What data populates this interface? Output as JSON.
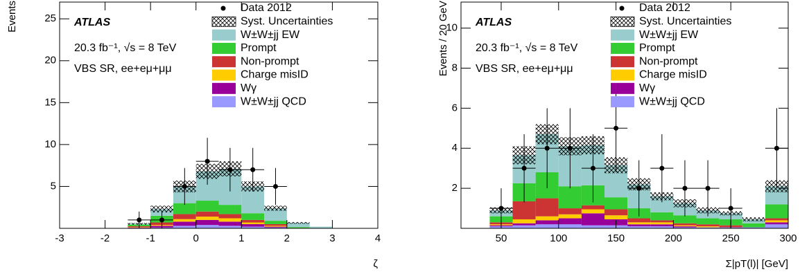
{
  "chart_data": [
    {
      "type": "histogram",
      "ylabel": "Events",
      "xlabel": "ζ",
      "annotations": [
        "ATLAS",
        "20.3 fb⁻¹, √s = 8 TeV",
        "VBS SR, ee+eμ+μμ"
      ],
      "bins": [
        -3,
        -2.5,
        -2,
        -1.5,
        -1,
        -0.5,
        0,
        0.5,
        1,
        1.5,
        2,
        2.5,
        3,
        3.5,
        4
      ],
      "series": [
        {
          "name": "W±W±jj EW",
          "color": "#99cccc",
          "values": [
            0,
            0,
            0,
            0.1,
            0.8,
            2.0,
            3.5,
            4.3,
            3.2,
            1.5,
            0.5,
            0.2,
            0,
            0
          ]
        },
        {
          "name": "Prompt",
          "color": "#33cc33",
          "values": [
            0,
            0,
            0,
            0.2,
            0.8,
            1.3,
            1.3,
            1.1,
            0.8,
            0.4,
            0.1,
            0,
            0,
            0
          ]
        },
        {
          "name": "Non-prompt",
          "color": "#cc3333",
          "values": [
            0,
            0,
            0,
            0.1,
            0.3,
            0.6,
            0.6,
            0.5,
            0.3,
            0.2,
            0,
            0,
            0,
            0
          ]
        },
        {
          "name": "Charge misID",
          "color": "#ffcc00",
          "values": [
            0,
            0,
            0,
            0.05,
            0.1,
            0.3,
            0.4,
            0.4,
            0.2,
            0.1,
            0,
            0,
            0,
            0
          ]
        },
        {
          "name": "Wγ",
          "color": "#990099",
          "values": [
            0,
            0,
            0,
            0.05,
            0.2,
            0.5,
            0.6,
            0.5,
            0.3,
            0.1,
            0,
            0,
            0,
            0
          ]
        },
        {
          "name": "W±W±jj QCD",
          "color": "#9999ff",
          "values": [
            0,
            0,
            0,
            0.05,
            0.1,
            0.3,
            0.4,
            0.3,
            0.2,
            0.1,
            0.05,
            0,
            0,
            0
          ]
        }
      ],
      "syst": {
        "name": "Syst. Uncertainties",
        "values": [
          0,
          0,
          0,
          0.1,
          0.4,
          0.7,
          0.9,
          0.9,
          0.6,
          0.3,
          0.1,
          0,
          0,
          0
        ]
      },
      "data": {
        "name": "Data 2012",
        "x": [
          -1.25,
          -0.75,
          -0.25,
          0.25,
          0.75,
          1.25,
          1.75
        ],
        "values": [
          1,
          1,
          5,
          8,
          7,
          7,
          5
        ],
        "errors": [
          1,
          1,
          2.2,
          2.8,
          2.6,
          2.6,
          2.2
        ]
      },
      "xlim": [
        -3,
        4
      ],
      "ylim": [
        0,
        27
      ],
      "xticks": [
        -3,
        -2,
        -1,
        0,
        1,
        2,
        3,
        4
      ],
      "yticks": [
        5,
        10,
        15,
        20,
        25
      ]
    },
    {
      "type": "histogram",
      "ylabel": "Events / 20 GeV",
      "xlabel": "Σ|pT(l)| [GeV]",
      "annotations": [
        "ATLAS",
        "20.3 fb⁻¹, √s = 8 TeV",
        "VBS SR, ee+eμ+μμ"
      ],
      "bins": [
        40,
        60,
        80,
        100,
        120,
        140,
        160,
        180,
        200,
        220,
        240,
        260,
        280,
        300
      ],
      "series": [
        {
          "name": "W±W±jj EW",
          "color": "#99cccc",
          "values": [
            0.3,
            1.4,
            1.9,
            2.0,
            2.0,
            1.6,
            1.2,
            0.8,
            0.6,
            0.4,
            0.3,
            0.2,
            0.9
          ]
        },
        {
          "name": "Prompt",
          "color": "#33cc33",
          "values": [
            0.3,
            0.9,
            1.3,
            1.1,
            1.0,
            0.6,
            0.5,
            0.4,
            0.4,
            0.3,
            0.3,
            0.2,
            0.7
          ]
        },
        {
          "name": "Non-prompt",
          "color": "#cc3333",
          "values": [
            0.1,
            0.9,
            0.9,
            0.3,
            0.2,
            0.3,
            0.2,
            0.1,
            0.1,
            0.1,
            0.1,
            0,
            0.1
          ]
        },
        {
          "name": "Charge misID",
          "color": "#ffcc00",
          "values": [
            0.05,
            0.2,
            0.2,
            0.2,
            0.2,
            0.2,
            0.1,
            0.1,
            0.05,
            0.05,
            0,
            0,
            0.1
          ]
        },
        {
          "name": "Wγ",
          "color": "#990099",
          "values": [
            0.05,
            0.1,
            0.2,
            0.3,
            0.6,
            0.3,
            0.1,
            0.1,
            0.05,
            0,
            0,
            0,
            0.1
          ]
        },
        {
          "name": "W±W±jj QCD",
          "color": "#9999ff",
          "values": [
            0.1,
            0.15,
            0.2,
            0.2,
            0.15,
            0.15,
            0.1,
            0.1,
            0.05,
            0.05,
            0.05,
            0.05,
            0.2
          ]
        }
      ],
      "syst": {
        "name": "Syst. Uncertainties",
        "values": [
          0.15,
          0.45,
          0.5,
          0.45,
          0.45,
          0.4,
          0.3,
          0.2,
          0.2,
          0.15,
          0.1,
          0.1,
          0.3
        ]
      },
      "data": {
        "name": "Data 2012",
        "x": [
          50,
          70,
          90,
          110,
          130,
          150,
          170,
          190,
          210,
          230,
          250,
          290
        ],
        "values": [
          1,
          3,
          4,
          4,
          3,
          5,
          2,
          3,
          2,
          2,
          1,
          4
        ],
        "errors": [
          1,
          1.7,
          2,
          2,
          1.7,
          2.2,
          1.4,
          1.7,
          1.4,
          1.4,
          1,
          2
        ]
      },
      "xlim": [
        15,
        300
      ],
      "ylim": [
        0,
        11.3
      ],
      "xticks": [
        50,
        100,
        150,
        200,
        250,
        300
      ],
      "yticks": [
        2,
        4,
        6,
        8,
        10
      ]
    }
  ]
}
